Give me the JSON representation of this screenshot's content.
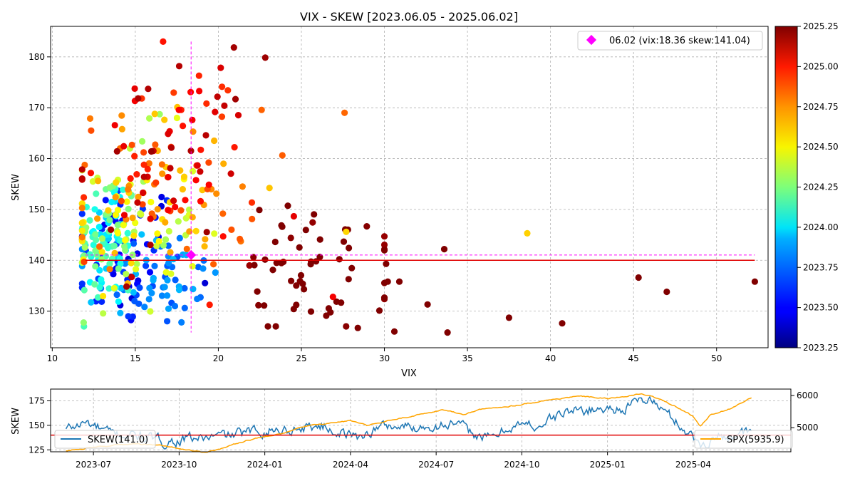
{
  "colors": {
    "skew_line": "#1f77b4",
    "spx_line": "#ffa500",
    "ref_line": "#e00000",
    "highlight": "#ff00ff",
    "grid": "#b0b0b0"
  },
  "chart_data": [
    {
      "type": "scatter",
      "title": "VIX - SKEW [2023.06.05 - 2025.06.02]",
      "xlabel": "VIX",
      "ylabel": "SKEW",
      "xlim": [
        9.9,
        53.1
      ],
      "ylim": [
        122.8,
        186.0
      ],
      "xticks": [
        "10",
        "15",
        "20",
        "25",
        "30",
        "35",
        "40",
        "45",
        "50"
      ],
      "yticks": [
        "130",
        "140",
        "150",
        "160",
        "170",
        "180"
      ],
      "grid": true,
      "color_by": "date",
      "colorbar": {
        "colormap": "jet",
        "range": [
          2023.25,
          2025.25
        ],
        "ticks": [
          "2023.25",
          "2023.50",
          "2023.75",
          "2024.00",
          "2024.25",
          "2024.50",
          "2024.75",
          "2025.00",
          "2025.25"
        ]
      },
      "reference_line": {
        "skew": 140.0
      },
      "highlight": {
        "date": "06.02",
        "vix": 18.36,
        "skew": 141.04,
        "label": "06.02 (vix:18.36 skew:141.04)"
      },
      "legend": "top-right",
      "points_generated": {
        "count": 500,
        "period_start": 2023.42,
        "period_end": 2025.42
      },
      "points": [
        {
          "vix": 52.3,
          "skew": 135.8,
          "t": 2025.26
        },
        {
          "vix": 47.0,
          "skew": 133.8,
          "t": 2025.27
        },
        {
          "vix": 45.3,
          "skew": 136.6,
          "t": 2025.26
        },
        {
          "vix": 40.7,
          "skew": 127.6,
          "t": 2025.27
        },
        {
          "vix": 38.6,
          "skew": 145.3,
          "t": 2024.59
        },
        {
          "vix": 37.5,
          "skew": 128.7,
          "t": 2025.27
        },
        {
          "vix": 33.8,
          "skew": 125.8,
          "t": 2025.27
        },
        {
          "vix": 33.6,
          "skew": 142.2,
          "t": 2025.26
        },
        {
          "vix": 32.6,
          "skew": 131.3,
          "t": 2025.28
        },
        {
          "vix": 30.9,
          "skew": 135.8,
          "t": 2025.28
        },
        {
          "vix": 30.6,
          "skew": 126.0,
          "t": 2025.29
        },
        {
          "vix": 30.1,
          "skew": 139.3,
          "t": 2025.25
        },
        {
          "vix": 30.2,
          "skew": 135.8,
          "t": 2025.27
        },
        {
          "vix": 29.7,
          "skew": 130.1,
          "t": 2025.28
        },
        {
          "vix": 28.4,
          "skew": 126.7,
          "t": 2025.29
        },
        {
          "vix": 27.6,
          "skew": 169.0,
          "t": 2024.8
        },
        {
          "vix": 27.8,
          "skew": 146.0,
          "t": 2025.26
        },
        {
          "vix": 27.7,
          "skew": 145.6,
          "t": 2024.58
        },
        {
          "vix": 26.9,
          "skew": 132.8,
          "t": 2025.02
        },
        {
          "vix": 26.5,
          "skew": 129.1,
          "t": 2025.29
        }
      ]
    },
    {
      "type": "line",
      "ylabel": "SKEW",
      "ylim": [
        123,
        187
      ],
      "yticks": [
        "125",
        "150",
        "175"
      ],
      "right_yticks": [
        "5000",
        "6000"
      ],
      "right_ylim": [
        4250,
        6200
      ],
      "xticks": [
        "2023-07",
        "2023-10",
        "2024-01",
        "2024-04",
        "2024-07",
        "2024-10",
        "2025-01",
        "2025-04"
      ],
      "reference_line": {
        "skew": 140.0
      },
      "grid": true,
      "series": [
        {
          "name": "SKEW(141.0)",
          "axis": "left",
          "legend": "bottom-left",
          "anchors": [
            [
              2023.42,
              146
            ],
            [
              2023.48,
              153
            ],
            [
              2023.55,
              141
            ],
            [
              2023.62,
              140
            ],
            [
              2023.7,
              133
            ],
            [
              2023.78,
              136
            ],
            [
              2023.85,
              138
            ],
            [
              2023.92,
              141
            ],
            [
              2024.0,
              145
            ],
            [
              2024.08,
              146
            ],
            [
              2024.16,
              150
            ],
            [
              2024.22,
              143
            ],
            [
              2024.27,
              138
            ],
            [
              2024.35,
              150
            ],
            [
              2024.43,
              148
            ],
            [
              2024.5,
              150
            ],
            [
              2024.55,
              152
            ],
            [
              2024.6,
              143
            ],
            [
              2024.66,
              136
            ],
            [
              2024.72,
              150
            ],
            [
              2024.8,
              150
            ],
            [
              2024.88,
              164
            ],
            [
              2024.95,
              166
            ],
            [
              2025.05,
              168
            ],
            [
              2025.12,
              178
            ],
            [
              2025.18,
              160
            ],
            [
              2025.22,
              148
            ],
            [
              2025.27,
              130
            ],
            [
              2025.32,
              138
            ],
            [
              2025.38,
              142
            ],
            [
              2025.42,
              141
            ]
          ]
        },
        {
          "name": "SPX(5935.9)",
          "axis": "right",
          "legend": "bottom-right",
          "anchors": [
            [
              2023.42,
              4280
            ],
            [
              2023.55,
              4450
            ],
            [
              2023.62,
              4500
            ],
            [
              2023.7,
              4440
            ],
            [
              2023.82,
              4230
            ],
            [
              2023.88,
              4370
            ],
            [
              2023.95,
              4620
            ],
            [
              2024.05,
              4800
            ],
            [
              2024.12,
              5050
            ],
            [
              2024.25,
              5220
            ],
            [
              2024.3,
              5060
            ],
            [
              2024.4,
              5300
            ],
            [
              2024.52,
              5560
            ],
            [
              2024.58,
              5400
            ],
            [
              2024.62,
              5550
            ],
            [
              2024.72,
              5680
            ],
            [
              2024.82,
              5850
            ],
            [
              2024.92,
              5980
            ],
            [
              2025.0,
              5900
            ],
            [
              2025.1,
              6050
            ],
            [
              2025.15,
              5900
            ],
            [
              2025.2,
              5650
            ],
            [
              2025.25,
              5350
            ],
            [
              2025.27,
              5050
            ],
            [
              2025.3,
              5400
            ],
            [
              2025.36,
              5600
            ],
            [
              2025.42,
              5936
            ]
          ]
        }
      ]
    }
  ]
}
